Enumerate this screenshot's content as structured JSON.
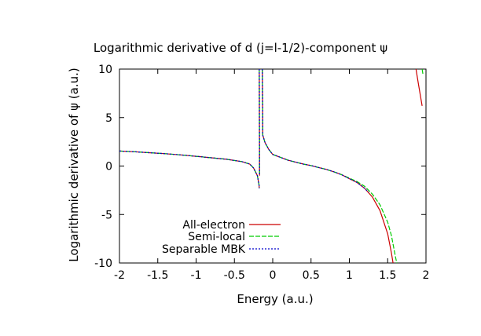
{
  "chart_data": {
    "type": "line",
    "title": "Logarithmic derivative of d (j=l-1/2)-component ψ",
    "xlabel": "Energy (a.u.)",
    "ylabel": "Logarithmic derivative of ψ (a.u.)",
    "xlim": [
      -2,
      2
    ],
    "ylim": [
      -10,
      10
    ],
    "xticks": [
      "-2",
      "-1.5",
      "-1",
      "-0.5",
      "0",
      "0.5",
      "1",
      "1.5",
      "2"
    ],
    "yticks": [
      "10",
      "5",
      "0",
      "-5",
      "-10"
    ],
    "grid": false,
    "legend_position": "bottom-left",
    "series": [
      {
        "name": "All-electron",
        "color": "#cc0000",
        "segments": [
          [
            [
              -2,
              1.55
            ],
            [
              -1.8,
              1.47
            ],
            [
              -1.6,
              1.37
            ],
            [
              -1.4,
              1.27
            ],
            [
              -1.2,
              1.15
            ],
            [
              -1.0,
              1.0
            ],
            [
              -0.8,
              0.85
            ],
            [
              -0.6,
              0.7
            ],
            [
              -0.4,
              0.45
            ],
            [
              -0.3,
              0.2
            ],
            [
              -0.25,
              -0.2
            ],
            [
              -0.2,
              -1.0
            ],
            [
              -0.18,
              -1.9
            ],
            [
              -0.175,
              -2.3
            ]
          ],
          [
            [
              -0.175,
              10
            ],
            [
              -0.172,
              -1.0
            ]
          ],
          [
            [
              -0.135,
              10
            ],
            [
              -0.13,
              3.2
            ],
            [
              -0.1,
              2.4
            ],
            [
              -0.05,
              1.7
            ],
            [
              0.0,
              1.2
            ],
            [
              0.1,
              0.9
            ],
            [
              0.2,
              0.6
            ],
            [
              0.3,
              0.4
            ],
            [
              0.4,
              0.2
            ],
            [
              0.5,
              0.05
            ],
            [
              0.6,
              -0.15
            ],
            [
              0.7,
              -0.35
            ],
            [
              0.8,
              -0.6
            ],
            [
              0.9,
              -0.9
            ],
            [
              1.0,
              -1.3
            ],
            [
              1.1,
              -1.7
            ],
            [
              1.2,
              -2.3
            ],
            [
              1.3,
              -3.2
            ],
            [
              1.4,
              -4.6
            ],
            [
              1.5,
              -7.0
            ],
            [
              1.55,
              -9.0
            ],
            [
              1.57,
              -10
            ]
          ],
          [
            [
              1.87,
              10
            ],
            [
              1.9,
              8.5
            ],
            [
              1.95,
              6.2
            ]
          ]
        ]
      },
      {
        "name": "Semi-local",
        "color": "#00cc00",
        "segments": [
          [
            [
              -2,
              1.55
            ],
            [
              -1.8,
              1.47
            ],
            [
              -1.6,
              1.37
            ],
            [
              -1.4,
              1.27
            ],
            [
              -1.2,
              1.15
            ],
            [
              -1.0,
              1.0
            ],
            [
              -0.8,
              0.85
            ],
            [
              -0.6,
              0.7
            ],
            [
              -0.4,
              0.45
            ],
            [
              -0.3,
              0.2
            ],
            [
              -0.25,
              -0.2
            ],
            [
              -0.2,
              -1.0
            ],
            [
              -0.18,
              -1.9
            ],
            [
              -0.175,
              -2.3
            ]
          ],
          [
            [
              -0.175,
              10
            ],
            [
              -0.172,
              -1.0
            ]
          ],
          [
            [
              -0.135,
              10
            ],
            [
              -0.13,
              3.2
            ],
            [
              -0.1,
              2.4
            ],
            [
              -0.05,
              1.7
            ],
            [
              0.0,
              1.2
            ],
            [
              0.1,
              0.9
            ],
            [
              0.2,
              0.6
            ],
            [
              0.3,
              0.4
            ],
            [
              0.4,
              0.2
            ],
            [
              0.5,
              0.05
            ],
            [
              0.6,
              -0.15
            ],
            [
              0.7,
              -0.35
            ],
            [
              0.8,
              -0.6
            ],
            [
              0.9,
              -0.9
            ],
            [
              1.0,
              -1.25
            ],
            [
              1.1,
              -1.6
            ],
            [
              1.2,
              -2.1
            ],
            [
              1.3,
              -2.9
            ],
            [
              1.4,
              -4.0
            ],
            [
              1.5,
              -5.8
            ],
            [
              1.55,
              -7.2
            ],
            [
              1.6,
              -9.3
            ],
            [
              1.62,
              -10
            ]
          ],
          [
            [
              1.95,
              10
            ],
            [
              1.96,
              9.5
            ]
          ]
        ]
      },
      {
        "name": "Separable MBK",
        "color": "#0000cc",
        "segments": [
          [
            [
              -2,
              1.55
            ],
            [
              -1.8,
              1.47
            ],
            [
              -1.6,
              1.37
            ],
            [
              -1.4,
              1.27
            ],
            [
              -1.2,
              1.15
            ],
            [
              -1.0,
              1.0
            ],
            [
              -0.8,
              0.85
            ],
            [
              -0.6,
              0.7
            ],
            [
              -0.4,
              0.45
            ],
            [
              -0.3,
              0.2
            ],
            [
              -0.25,
              -0.2
            ],
            [
              -0.2,
              -1.0
            ],
            [
              -0.18,
              -1.9
            ],
            [
              -0.175,
              -2.3
            ]
          ],
          [
            [
              -0.175,
              10
            ],
            [
              -0.172,
              -1.0
            ]
          ],
          [
            [
              -0.135,
              10
            ],
            [
              -0.13,
              3.2
            ],
            [
              -0.1,
              2.4
            ],
            [
              -0.05,
              1.7
            ],
            [
              0.0,
              1.2
            ],
            [
              0.1,
              0.9
            ],
            [
              0.2,
              0.6
            ],
            [
              0.3,
              0.4
            ],
            [
              0.4,
              0.2
            ],
            [
              0.5,
              0.05
            ],
            [
              0.6,
              -0.15
            ],
            [
              0.7,
              -0.35
            ],
            [
              0.8,
              -0.6
            ],
            [
              0.9,
              -0.9
            ],
            [
              1.0,
              -1.3
            ],
            [
              1.1,
              -1.7
            ],
            [
              1.2,
              -2.3
            ],
            [
              1.25,
              -2.7
            ]
          ]
        ]
      }
    ]
  }
}
